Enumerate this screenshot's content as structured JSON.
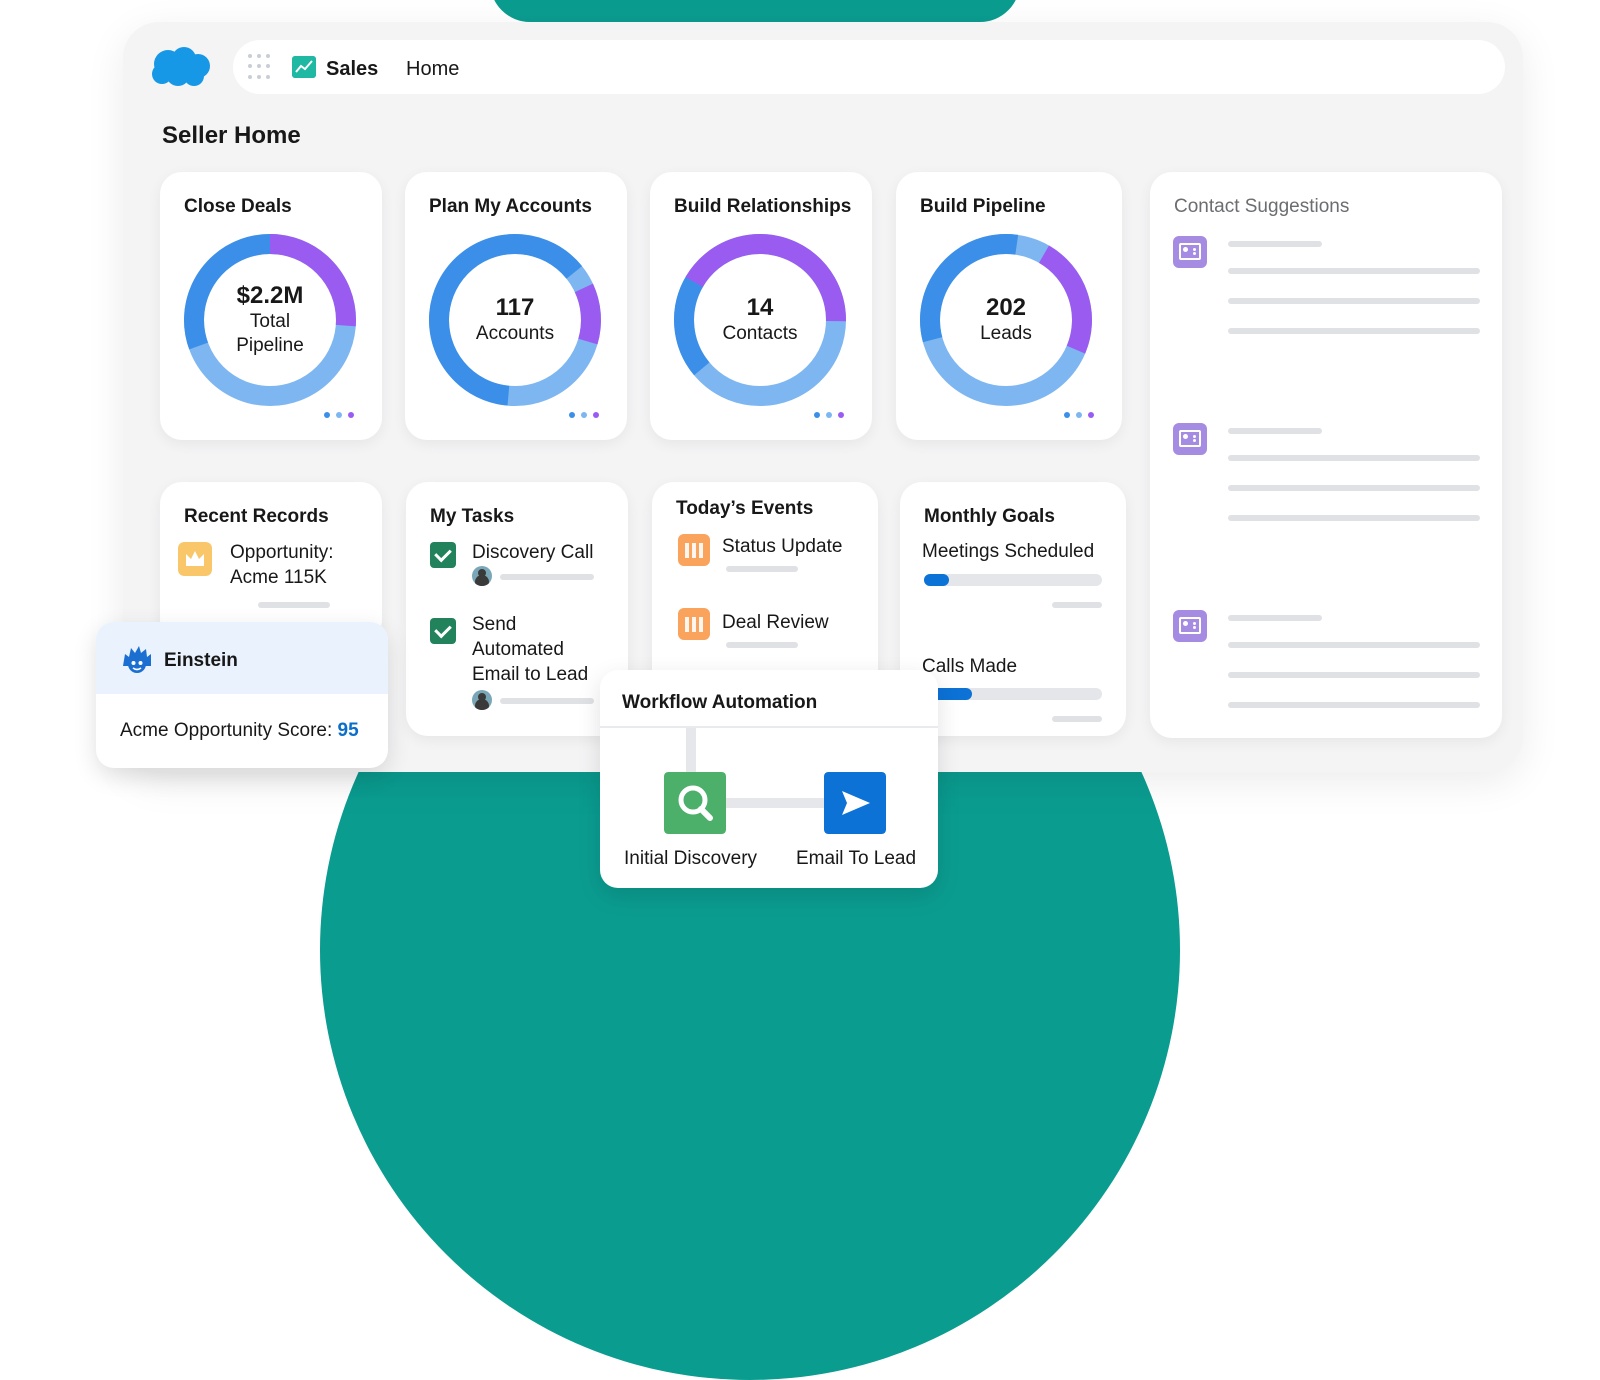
{
  "nav": {
    "app_name": "Sales",
    "home": "Home"
  },
  "page_title": "Seller Home",
  "metric_cards": [
    {
      "title": "Close Deals",
      "value": "$2.2M",
      "caption": "Total Pipeline"
    },
    {
      "title": "Plan My Accounts",
      "value": "117",
      "caption": "Accounts"
    },
    {
      "title": "Build Relationships",
      "value": "14",
      "caption": "Contacts"
    },
    {
      "title": "Build Pipeline",
      "value": "202",
      "caption": "Leads"
    }
  ],
  "contact_suggestions": {
    "title": "Contact Suggestions"
  },
  "recent_records": {
    "title": "Recent Records",
    "item": "Opportunity: Acme 115K"
  },
  "my_tasks": {
    "title": "My Tasks",
    "items": [
      {
        "label": "Discovery Call"
      },
      {
        "label": "Send Automated Email to Lead"
      }
    ]
  },
  "todays_events": {
    "title": "Today’s Events",
    "items": [
      {
        "label": "Status Update"
      },
      {
        "label": "Deal Review"
      }
    ]
  },
  "monthly_goals": {
    "title": "Monthly Goals",
    "goals": [
      {
        "label": "Meetings Scheduled",
        "progress": 0.14
      },
      {
        "label": "Calls Made",
        "progress": 0.27
      }
    ]
  },
  "einstein": {
    "title": "Einstein",
    "score_label": "Acme Opportunity Score: ",
    "score_value": "95"
  },
  "workflow": {
    "title": "Workflow Automation",
    "steps": [
      {
        "label": "Initial Discovery",
        "icon": "search-icon"
      },
      {
        "label": "Email To Lead",
        "icon": "send-icon"
      }
    ]
  },
  "colors": {
    "teal": "#0b9c90",
    "blue": "#3b8fe8",
    "light_blue": "#7db6f0",
    "purple": "#9a5cf0",
    "goal_bar": "#0c72d6"
  }
}
